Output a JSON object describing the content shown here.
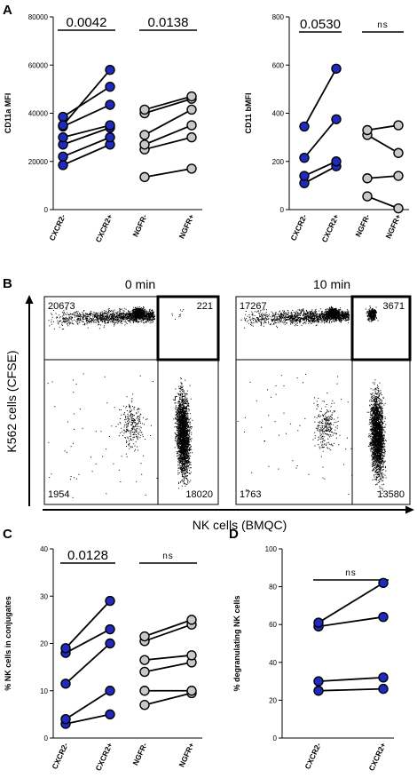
{
  "colors": {
    "blue": "#1f2bbf",
    "gray": "#c8c8c8",
    "ink": "#000000"
  },
  "panels": {
    "a": "A",
    "b": "B",
    "c": "C",
    "d": "D"
  },
  "chart_data": [
    {
      "id": "a-left",
      "type": "scatter",
      "title": "",
      "ylabel": "CD11a MFI",
      "ylim": [
        0,
        80000
      ],
      "yticks": [
        0,
        20000,
        40000,
        60000,
        80000
      ],
      "ytick_labels": [
        "0",
        "20000",
        "40000",
        "60000",
        "80000"
      ],
      "categories": [
        "CXCR2-",
        "CXCR2+",
        "NGFR-",
        "NGFR+"
      ],
      "groups": [
        {
          "from": 0,
          "to": 1,
          "color": "blue",
          "pairs": [
            [
              18500,
              27000
            ],
            [
              22000,
              30000
            ],
            [
              27000,
              34000
            ],
            [
              30000,
              35000
            ],
            [
              34500,
              43500
            ],
            [
              38500,
              51000
            ],
            [
              35000,
              58000
            ]
          ]
        },
        {
          "from": 2,
          "to": 3,
          "color": "gray",
          "pairs": [
            [
              13500,
              17000
            ],
            [
              25000,
              30000
            ],
            [
              27000,
              35000
            ],
            [
              31000,
              41500
            ],
            [
              40000,
              46000
            ],
            [
              41500,
              47000
            ]
          ]
        }
      ],
      "annotations": [
        {
          "text": "0.0042",
          "from": 0,
          "to": 1,
          "style": "pval"
        },
        {
          "text": "0.0138",
          "from": 2,
          "to": 3,
          "style": "pval"
        }
      ]
    },
    {
      "id": "a-right",
      "type": "scatter",
      "title": "",
      "ylabel": "CD11 bMFI",
      "ylim": [
        0,
        800
      ],
      "yticks": [
        0,
        200,
        400,
        600,
        800
      ],
      "ytick_labels": [
        "0",
        "200",
        "400",
        "600",
        "800"
      ],
      "categories": [
        "CXCR2-",
        "CXCR2+",
        "NGFR-",
        "NGFR+"
      ],
      "groups": [
        {
          "from": 0,
          "to": 1,
          "color": "blue",
          "pairs": [
            [
              110,
              180
            ],
            [
              140,
              200
            ],
            [
              215,
              375
            ],
            [
              345,
              585
            ]
          ]
        },
        {
          "from": 2,
          "to": 3,
          "color": "gray",
          "pairs": [
            [
              55,
              5
            ],
            [
              130,
              140
            ],
            [
              310,
              235
            ],
            [
              330,
              350
            ]
          ]
        }
      ],
      "annotations": [
        {
          "text": "0.0530",
          "from": 0,
          "to": 1,
          "style": "pval"
        },
        {
          "text": "ns",
          "from": 2,
          "to": 3,
          "style": "ns"
        }
      ]
    },
    {
      "id": "b-flow",
      "type": "scatter",
      "xlabel": "NK cells (BMQC)",
      "ylabel": "K562 cells (CFSE)",
      "plots": [
        {
          "title": "0 min",
          "q_ul": "20673",
          "q_ur": "221",
          "q_ll": "1954",
          "q_lr": "18020"
        },
        {
          "title": "10 min",
          "q_ul": "17267",
          "q_ur": "3671",
          "q_ll": "1763",
          "q_lr": "13580"
        }
      ]
    },
    {
      "id": "c",
      "type": "scatter",
      "title": "",
      "ylabel": "% NK cells in conjugates",
      "ylim": [
        0,
        40
      ],
      "yticks": [
        0,
        10,
        20,
        30,
        40
      ],
      "ytick_labels": [
        "0",
        "10",
        "20",
        "30",
        "40"
      ],
      "categories": [
        "CXCR2-",
        "CXCR2+",
        "NGFR-",
        "NGFR+"
      ],
      "groups": [
        {
          "from": 0,
          "to": 1,
          "color": "blue",
          "pairs": [
            [
              3,
              5
            ],
            [
              4,
              10
            ],
            [
              11.5,
              20
            ],
            [
              18,
              23
            ],
            [
              19,
              29
            ]
          ]
        },
        {
          "from": 2,
          "to": 3,
          "color": "gray",
          "pairs": [
            [
              7,
              9.5
            ],
            [
              10,
              10
            ],
            [
              14,
              16
            ],
            [
              16.5,
              17.5
            ],
            [
              20.5,
              24
            ],
            [
              21.5,
              25
            ]
          ]
        }
      ],
      "annotations": [
        {
          "text": "0.0128",
          "from": 0,
          "to": 1,
          "style": "pval"
        },
        {
          "text": "ns",
          "from": 2,
          "to": 3,
          "style": "ns"
        }
      ]
    },
    {
      "id": "d",
      "type": "scatter",
      "title": "",
      "ylabel": "% degranulating NK cells",
      "ylim": [
        0,
        100
      ],
      "yticks": [
        0,
        20,
        40,
        60,
        80,
        100
      ],
      "ytick_labels": [
        "0",
        "20",
        "40",
        "60",
        "80",
        "100"
      ],
      "categories": [
        "CXCR2-",
        "CXCR2+"
      ],
      "groups": [
        {
          "from": 0,
          "to": 1,
          "color": "blue",
          "pairs": [
            [
              25,
              26
            ],
            [
              30,
              32
            ],
            [
              59,
              64
            ],
            [
              61,
              82
            ]
          ]
        }
      ],
      "annotations": [
        {
          "text": "ns",
          "from": 0,
          "to": 1,
          "style": "ns"
        }
      ]
    }
  ]
}
